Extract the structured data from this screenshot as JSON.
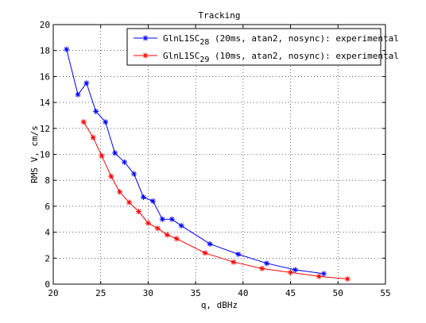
{
  "chart_data": {
    "type": "line",
    "title": "Tracking",
    "xlabel": "q, dBHz",
    "ylabel": "RMS V, cm/s",
    "xlim": [
      20,
      55
    ],
    "ylim": [
      0,
      20
    ],
    "xticks": [
      20,
      25,
      30,
      35,
      40,
      45,
      50,
      55
    ],
    "yticks": [
      0,
      2,
      4,
      6,
      8,
      10,
      12,
      14,
      16,
      18,
      20
    ],
    "grid": true,
    "legend_position": "top-right",
    "series": [
      {
        "name_parts": [
          "GlnL1SC",
          "28",
          " (20ms, atan2, nosync): experimental"
        ],
        "color": "#0000ff",
        "marker": "asterisk",
        "x": [
          21.4,
          22.6,
          23.5,
          24.5,
          25.5,
          26.5,
          27.5,
          28.5,
          29.5,
          30.5,
          31.5,
          32.5,
          33.5,
          36.5,
          39.5,
          42.5,
          45.5,
          48.5
        ],
        "y": [
          18.1,
          14.6,
          15.5,
          13.3,
          12.5,
          10.1,
          9.4,
          8.5,
          6.7,
          6.4,
          5.0,
          5.0,
          4.5,
          3.1,
          2.3,
          1.6,
          1.1,
          0.8
        ]
      },
      {
        "name_parts": [
          "GlnL1SC",
          "29",
          " (10ms, atan2, nosync): experimental"
        ],
        "color": "#ff0000",
        "marker": "asterisk",
        "x": [
          23.2,
          24.2,
          25.1,
          26.1,
          27.0,
          28.0,
          29.0,
          30.0,
          31.0,
          32.0,
          33.0,
          36.0,
          39.0,
          42.0,
          45.0,
          48.0,
          51.0
        ],
        "y": [
          12.5,
          11.3,
          9.9,
          8.3,
          7.1,
          6.3,
          5.6,
          4.7,
          4.3,
          3.8,
          3.5,
          2.4,
          1.7,
          1.2,
          0.9,
          0.6,
          0.4
        ]
      }
    ]
  }
}
